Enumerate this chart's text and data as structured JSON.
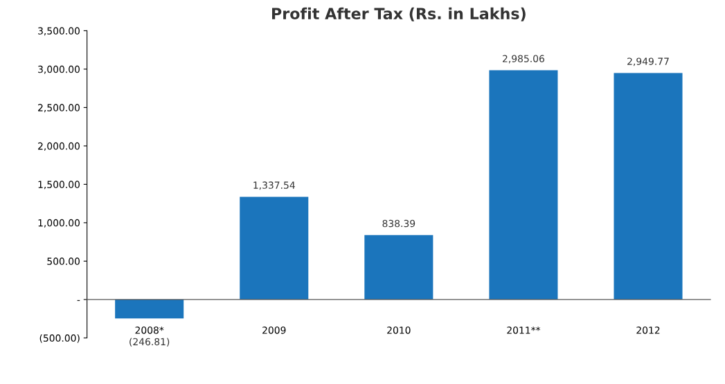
{
  "chart_data": {
    "type": "bar",
    "title": "Profit After Tax (Rs. in Lakhs)",
    "categories": [
      "2008*",
      "2009",
      "2010",
      "2011**",
      "2012"
    ],
    "values": [
      -246.81,
      1337.54,
      838.39,
      2985.06,
      2949.77
    ],
    "value_labels": [
      "(246.81)",
      "1,337.54",
      "838.39",
      "2,985.06",
      "2,949.77"
    ],
    "color": "#1b75bc",
    "ylim": [
      -500,
      3500
    ],
    "yticks": [
      {
        "value": -500,
        "label": "(500.00)"
      },
      {
        "value": 0,
        "label": "-"
      },
      {
        "value": 500,
        "label": "500.00"
      },
      {
        "value": 1000,
        "label": "1,000.00"
      },
      {
        "value": 1500,
        "label": "1,500.00"
      },
      {
        "value": 2000,
        "label": "2,000.00"
      },
      {
        "value": 2500,
        "label": "2,500.00"
      },
      {
        "value": 3000,
        "label": "3,000.00"
      },
      {
        "value": 3500,
        "label": "3,500.00"
      }
    ],
    "legend": false
  }
}
